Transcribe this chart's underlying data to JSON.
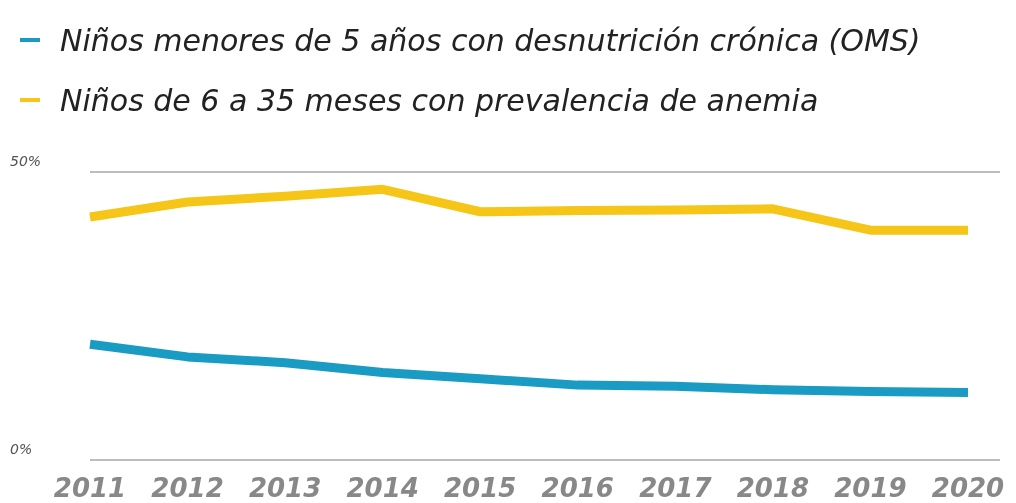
{
  "chart_data": {
    "type": "line",
    "categories": [
      "2011",
      "2012",
      "2013",
      "2014",
      "2015",
      "2016",
      "2017",
      "2018",
      "2019",
      "2020"
    ],
    "series": [
      {
        "name": "Niños menores de 5 años con desnutrición crónica (OMS)",
        "color": "#1a9bc4",
        "values": [
          20.1,
          17.9,
          16.9,
          15.2,
          14.1,
          13.0,
          12.8,
          12.2,
          11.9,
          11.7
        ]
      },
      {
        "name": "Niños de 6 a 35 meses con prevalencia de anemia",
        "color": "#f5c518",
        "values": [
          42.2,
          44.8,
          45.8,
          47.0,
          43.1,
          43.3,
          43.4,
          43.6,
          39.9,
          39.9
        ]
      }
    ],
    "ylim": [
      0,
      50
    ],
    "yticks": [
      {
        "value": 0,
        "label": "0%"
      },
      {
        "value": 50,
        "label": "50%"
      }
    ],
    "legend": "top left",
    "marker": "none",
    "line_style": "solid"
  }
}
